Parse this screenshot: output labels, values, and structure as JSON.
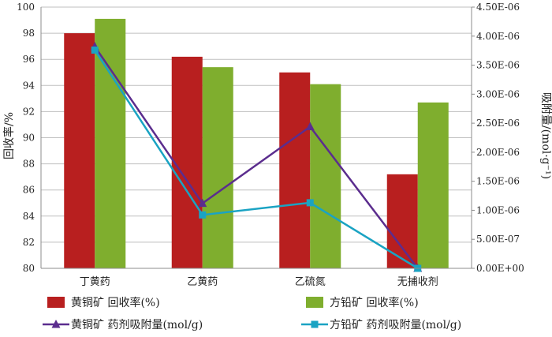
{
  "chart_data": {
    "type": "bar",
    "categories": [
      "丁黄药",
      "乙黄药",
      "乙硫氮",
      "无捕收剂"
    ],
    "bar_series": [
      {
        "name": "黄铜矿  回收率(%)",
        "values": [
          98.0,
          96.2,
          95.0,
          87.2
        ],
        "color": "#b81f1f"
      },
      {
        "name": "方铅矿  回收率(%)",
        "values": [
          99.1,
          95.4,
          94.1,
          92.7
        ],
        "color": "#7fae2e"
      }
    ],
    "line_series": [
      {
        "name": "黄铜矿  药剂吸附量(mol/g)",
        "values": [
          3.82e-06,
          1.12e-06,
          2.44e-06,
          0.0
        ],
        "color": "#5b2d8e",
        "marker": "triangle"
      },
      {
        "name": "方铅矿  药剂吸附量(mol/g)",
        "values": [
          3.76e-06,
          9.2e-07,
          1.13e-06,
          0.0
        ],
        "color": "#1aa3c3",
        "marker": "square"
      }
    ],
    "ylabel": "回收率/%",
    "y2label": "吸附量/(mol·g⁻¹)",
    "ylim": [
      80,
      100
    ],
    "y_ticks": [
      "80",
      "82",
      "84",
      "86",
      "88",
      "90",
      "92",
      "94",
      "96",
      "98",
      "100"
    ],
    "y2lim": [
      0,
      4.5e-06
    ],
    "y2_ticks": [
      "0.00E+00",
      "5.00E-07",
      "1.00E-06",
      "1.50E-06",
      "2.00E-06",
      "2.50E-06",
      "3.00E-06",
      "3.50E-06",
      "4.00E-06",
      "4.50E-06"
    ],
    "grid": true,
    "legend_position": "bottom"
  }
}
